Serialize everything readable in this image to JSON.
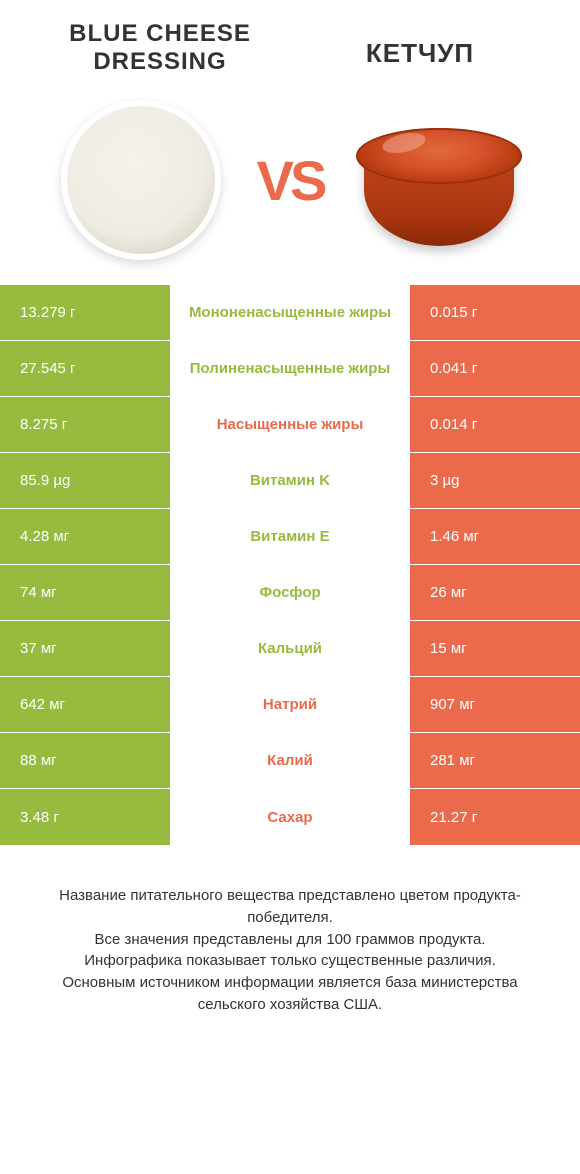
{
  "colors": {
    "green": "#97bb3e",
    "orange": "#ec6a4c",
    "white": "#ffffff",
    "text": "#333333"
  },
  "header": {
    "left_title_line1": "BLUE CHEESE",
    "left_title_line2": "DRESSING",
    "right_title": "КЕТЧУП",
    "vs": "VS"
  },
  "table": {
    "rows": [
      {
        "left": "13.279 г",
        "mid": "Мононенасыщенные жиры",
        "right": "0.015 г",
        "winner": "left"
      },
      {
        "left": "27.545 г",
        "mid": "Полиненасыщенные жиры",
        "right": "0.041 г",
        "winner": "left"
      },
      {
        "left": "8.275 г",
        "mid": "Насыщенные жиры",
        "right": "0.014 г",
        "winner": "right"
      },
      {
        "left": "85.9 µg",
        "mid": "Витамин K",
        "right": "3 µg",
        "winner": "left"
      },
      {
        "left": "4.28 мг",
        "mid": "Витамин E",
        "right": "1.46 мг",
        "winner": "left"
      },
      {
        "left": "74 мг",
        "mid": "Фосфор",
        "right": "26 мг",
        "winner": "left"
      },
      {
        "left": "37 мг",
        "mid": "Кальций",
        "right": "15 мг",
        "winner": "left"
      },
      {
        "left": "642 мг",
        "mid": "Натрий",
        "right": "907 мг",
        "winner": "right"
      },
      {
        "left": "88 мг",
        "mid": "Калий",
        "right": "281 мг",
        "winner": "right"
      },
      {
        "left": "3.48 г",
        "mid": "Сахар",
        "right": "21.27 г",
        "winner": "right"
      }
    ]
  },
  "footnote": {
    "line1": "Название питательного вещества представлено цветом продукта-победителя.",
    "line2": "Все значения представлены для 100 граммов продукта.",
    "line3": "Инфографика показывает только существенные различия.",
    "line4": "Основным источником информации является база министерства сельского хозяйства США."
  }
}
